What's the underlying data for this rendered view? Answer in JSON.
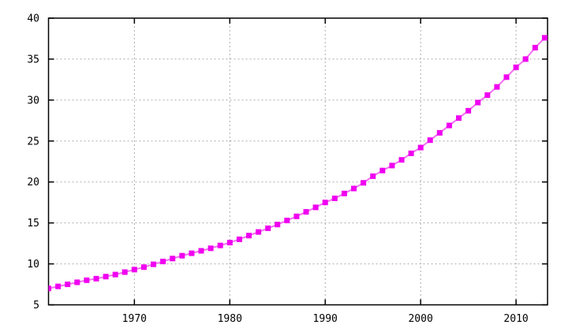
{
  "chart_data": {
    "type": "line",
    "title": "",
    "xlabel": "",
    "ylabel": "",
    "legend": "none",
    "grid": true,
    "xlim": [
      1961,
      2013.3
    ],
    "ylim": [
      5,
      40
    ],
    "x_ticks": [
      1970,
      1980,
      1990,
      2000,
      2010
    ],
    "y_ticks": [
      5,
      10,
      15,
      20,
      25,
      30,
      35,
      40
    ],
    "x": [
      1961,
      1962,
      1963,
      1964,
      1965,
      1966,
      1967,
      1968,
      1969,
      1970,
      1971,
      1972,
      1973,
      1974,
      1975,
      1976,
      1977,
      1978,
      1979,
      1980,
      1981,
      1982,
      1983,
      1984,
      1985,
      1986,
      1987,
      1988,
      1989,
      1990,
      1991,
      1992,
      1993,
      1994,
      1995,
      1996,
      1997,
      1998,
      1999,
      2000,
      2001,
      2002,
      2003,
      2004,
      2005,
      2006,
      2007,
      2008,
      2009,
      2010,
      2011,
      2012,
      2013
    ],
    "values": [
      7.0,
      7.25,
      7.5,
      7.75,
      8.0,
      8.2,
      8.45,
      8.7,
      9.0,
      9.3,
      9.6,
      9.95,
      10.3,
      10.65,
      11.0,
      11.3,
      11.6,
      11.9,
      12.25,
      12.6,
      13.0,
      13.45,
      13.9,
      14.35,
      14.8,
      15.3,
      15.8,
      16.35,
      16.9,
      17.5,
      18.0,
      18.6,
      19.2,
      19.9,
      20.7,
      21.4,
      22.0,
      22.7,
      23.5,
      24.2,
      25.1,
      26.0,
      26.9,
      27.8,
      28.7,
      29.7,
      30.6,
      31.6,
      32.8,
      34.0,
      35.0,
      36.4,
      37.6
    ],
    "marker": "square",
    "marker_size": 7,
    "colors": {
      "marker": "#f000f0",
      "line": "#f46df4",
      "grid": "#aaaaaa",
      "axis": "#000000",
      "background": "#ffffff",
      "text": "#000000"
    }
  }
}
